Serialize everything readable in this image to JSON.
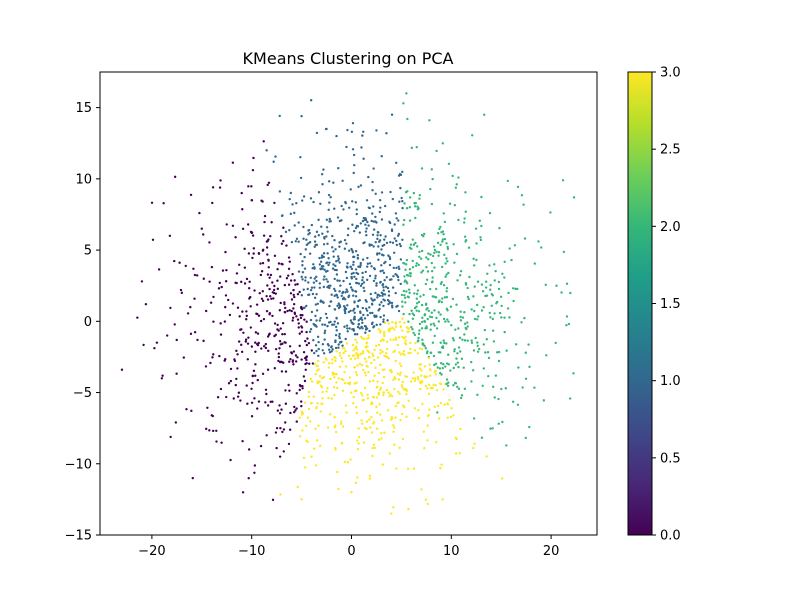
{
  "chart_data": {
    "type": "scatter",
    "title": "KMeans Clustering on PCA",
    "xlabel": "",
    "ylabel": "",
    "xlim": [
      -25.2,
      24.6
    ],
    "ylim": [
      -15.0,
      17.5
    ],
    "xticks": [
      -20,
      -10,
      0,
      10,
      20
    ],
    "yticks": [
      -15,
      -10,
      -5,
      0,
      5,
      10,
      15
    ],
    "xtick_labels": [
      "−20",
      "−10",
      "0",
      "10",
      "20"
    ],
    "ytick_labels": [
      "−15",
      "−10",
      "−5",
      "0",
      "5",
      "10",
      "15"
    ],
    "grid": false,
    "legend": "none",
    "colormap": "viridis",
    "colorbar": {
      "range": [
        0.0,
        3.0
      ],
      "ticks": [
        0.0,
        0.5,
        1.0,
        1.5,
        2.0,
        2.5,
        3.0
      ],
      "tick_labels": [
        "0.0",
        "0.5",
        "1.0",
        "1.5",
        "2.0",
        "2.5",
        "3.0"
      ],
      "colors": [
        "#440154",
        "#482878",
        "#3e4989",
        "#31688e",
        "#26828e",
        "#1f9e89",
        "#35b779",
        "#6ece58",
        "#b5de2b",
        "#fde725"
      ]
    },
    "clusters": [
      {
        "label": 0,
        "color": "#440154",
        "center": [
          -9.5,
          0.0
        ],
        "approx_count": 420
      },
      {
        "label": 1,
        "color": "#31688e",
        "center": [
          -0.5,
          3.0
        ],
        "approx_count": 560
      },
      {
        "label": 2,
        "color": "#35b779",
        "center": [
          10.5,
          2.5
        ],
        "approx_count": 340
      },
      {
        "label": 3,
        "color": "#fde725",
        "center": [
          2.5,
          -5.0
        ],
        "approx_count": 640
      }
    ],
    "points": [
      {
        "x": -23.0,
        "y": -3.4,
        "cluster": 0
      },
      {
        "x": -21.0,
        "y": 2.8,
        "cluster": 0
      },
      {
        "x": -20.6,
        "y": 1.2,
        "cluster": 0
      },
      {
        "x": -19.5,
        "y": -1.5,
        "cluster": 0
      },
      {
        "x": -19.0,
        "y": -4.0,
        "cluster": 0
      },
      {
        "x": -18.2,
        "y": 6.0,
        "cluster": 0
      },
      {
        "x": -17.6,
        "y": -7.1,
        "cluster": 0
      },
      {
        "x": -17.0,
        "y": 2.0,
        "cluster": 0
      },
      {
        "x": -15.0,
        "y": 6.5,
        "cluster": 0
      },
      {
        "x": -14.0,
        "y": -6.6,
        "cluster": 0
      },
      {
        "x": -12.5,
        "y": 6.8,
        "cluster": 0
      },
      {
        "x": -11.0,
        "y": 9.0,
        "cluster": 0
      },
      {
        "x": -10.0,
        "y": 8.5,
        "cluster": 0
      },
      {
        "x": -8.5,
        "y": -8.0,
        "cluster": 0
      },
      {
        "x": -7.5,
        "y": -8.9,
        "cluster": 0
      },
      {
        "x": -1.5,
        "y": 13.0,
        "cluster": 1
      },
      {
        "x": -2.5,
        "y": 13.5,
        "cluster": 1
      },
      {
        "x": -5.0,
        "y": 14.4,
        "cluster": 1
      },
      {
        "x": 1.0,
        "y": 12.2,
        "cluster": 1
      },
      {
        "x": 2.5,
        "y": 13.4,
        "cluster": 1
      },
      {
        "x": 3.5,
        "y": 13.2,
        "cluster": 1
      },
      {
        "x": -8.5,
        "y": 12.0,
        "cluster": 1
      },
      {
        "x": -7.8,
        "y": 11.2,
        "cluster": 1
      },
      {
        "x": 5.5,
        "y": 16.0,
        "cluster": 2
      },
      {
        "x": 5.2,
        "y": 15.3,
        "cluster": 2
      },
      {
        "x": 5.6,
        "y": 14.2,
        "cluster": 2
      },
      {
        "x": 13.3,
        "y": 14.5,
        "cluster": 2
      },
      {
        "x": 21.2,
        "y": 9.9,
        "cluster": 2
      },
      {
        "x": 22.3,
        "y": 8.7,
        "cluster": 2
      },
      {
        "x": 14.3,
        "y": 4.0,
        "cluster": 2
      },
      {
        "x": 10.6,
        "y": -4.6,
        "cluster": 2
      },
      {
        "x": 14.2,
        "y": -4.6,
        "cluster": 2
      },
      {
        "x": 8.6,
        "y": -6.4,
        "cluster": 2
      },
      {
        "x": 12.2,
        "y": -8.9,
        "cluster": 3
      },
      {
        "x": 4.0,
        "y": -13.5,
        "cluster": 3
      },
      {
        "x": -5.0,
        "y": -12.5,
        "cluster": 3
      },
      {
        "x": 7.0,
        "y": -11.8,
        "cluster": 3
      },
      {
        "x": 0.0,
        "y": -12.0,
        "cluster": 3
      }
    ]
  }
}
